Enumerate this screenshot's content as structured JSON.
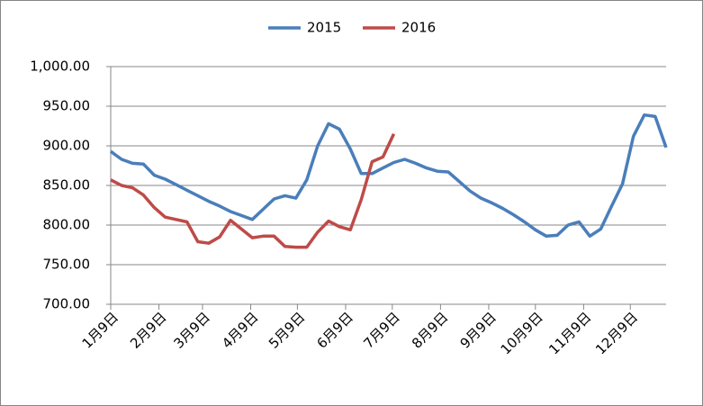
{
  "chart_data": {
    "type": "line",
    "x": [
      9,
      16,
      23,
      30,
      37,
      44,
      51,
      58,
      65,
      72,
      79,
      86,
      93,
      100,
      107,
      114,
      121,
      128,
      135,
      142,
      149,
      156,
      163,
      170,
      177,
      184,
      191,
      198,
      205,
      212,
      219,
      226,
      233,
      240,
      247,
      254,
      261,
      268,
      275,
      282,
      289,
      296,
      303,
      310,
      317,
      324,
      331,
      338,
      345,
      352,
      359,
      366
    ],
    "series": [
      {
        "name": "2015",
        "color": "#4a7ebb",
        "values": [
          893,
          883,
          878,
          877,
          863,
          858,
          851,
          844,
          837,
          830,
          824,
          817,
          812,
          807,
          820,
          833,
          837,
          834,
          857,
          900,
          928,
          921,
          896,
          865,
          865,
          872,
          879,
          883,
          878,
          872,
          868,
          867,
          855,
          843,
          834,
          828,
          821,
          813,
          804,
          794,
          786,
          787,
          800,
          804,
          786,
          795,
          824,
          852,
          912,
          939,
          937,
          898
        ]
      },
      {
        "name": "2016",
        "color": "#be4b48",
        "values": [
          857,
          850,
          847,
          838,
          822,
          810,
          807,
          804,
          779,
          777,
          785,
          806,
          795,
          784,
          786,
          786,
          773,
          772,
          772,
          791,
          805,
          798,
          794,
          832,
          880,
          886,
          915,
          null,
          null,
          null,
          null,
          null,
          null,
          null,
          null,
          null,
          null,
          null,
          null,
          null,
          null,
          null,
          null,
          null,
          null,
          null,
          null,
          null,
          null,
          null,
          null,
          null
        ]
      }
    ],
    "xlim": [
      9,
      366
    ],
    "xticks": [
      {
        "value": 9,
        "label": "1月9日"
      },
      {
        "value": 40,
        "label": "2月9日"
      },
      {
        "value": 68,
        "label": "3月9日"
      },
      {
        "value": 99,
        "label": "4月9日"
      },
      {
        "value": 129,
        "label": "5月9日"
      },
      {
        "value": 160,
        "label": "6月9日"
      },
      {
        "value": 190,
        "label": "7月9日"
      },
      {
        "value": 221,
        "label": "8月9日"
      },
      {
        "value": 252,
        "label": "9月9日"
      },
      {
        "value": 282,
        "label": "10月9日"
      },
      {
        "value": 313,
        "label": "11月9日"
      },
      {
        "value": 343,
        "label": "12月9日"
      }
    ],
    "ylim": [
      700,
      1000
    ],
    "yticks": [
      {
        "value": 700,
        "label": "700.00"
      },
      {
        "value": 750,
        "label": "750.00"
      },
      {
        "value": 800,
        "label": "800.00"
      },
      {
        "value": 850,
        "label": "850.00"
      },
      {
        "value": 900,
        "label": "900.00"
      },
      {
        "value": 950,
        "label": "950.00"
      },
      {
        "value": 1000,
        "label": "1,000.00"
      }
    ],
    "grid": true,
    "legend": "top"
  }
}
